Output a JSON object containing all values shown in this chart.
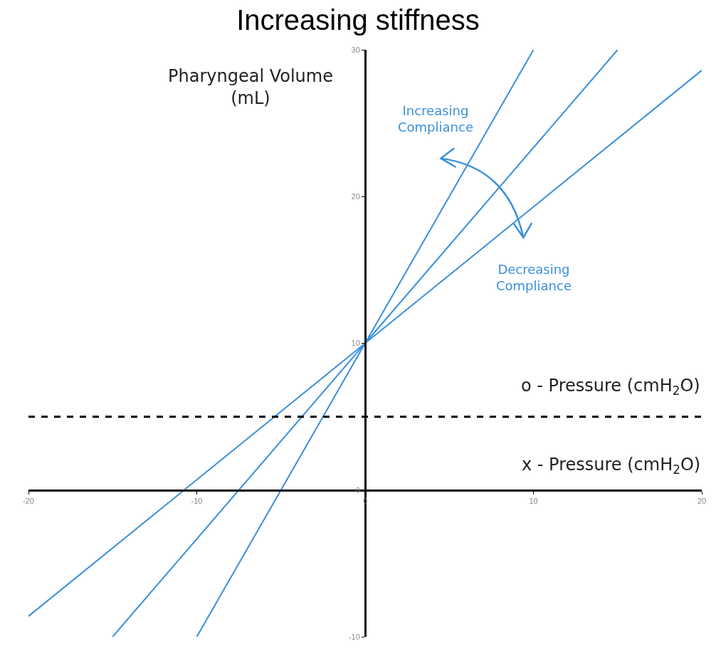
{
  "chart_data": {
    "type": "line",
    "title": "Increasing stiffness",
    "ylabel": "Pharyngeal Volume (mL)",
    "xlabel": "x - Pressure (cmH$_{2}$O)",
    "series": [
      {
        "color": "#3a8fd9",
        "x": [
          -10,
          0,
          10
        ],
        "values": [
          -10,
          10,
          30
        ]
      },
      {
        "color": "#3a8fd9",
        "x": [
          -15,
          0,
          15
        ],
        "values": [
          -10,
          10,
          30
        ]
      },
      {
        "color": "#3a8fd9",
        "x": [
          -20,
          0,
          20
        ],
        "values": [
          -8.6,
          10,
          28.6
        ]
      }
    ],
    "ref_lines": [
      {
        "axis": "y",
        "value": 5,
        "label": "o - Pressure (cmH$_{2}$O)",
        "color": "#000000",
        "line_style": "dashed"
      }
    ],
    "annotations": [
      "Increasing Compliance",
      "Decreasing Compliance"
    ],
    "xlim": [
      -20,
      20
    ],
    "ylim": [
      -10,
      30
    ],
    "xticks": [
      -20,
      -10,
      0,
      10,
      20
    ],
    "yticks": [
      -10,
      0,
      10,
      20,
      30
    ],
    "legend": false,
    "marker": "none",
    "line_style": "solid"
  }
}
